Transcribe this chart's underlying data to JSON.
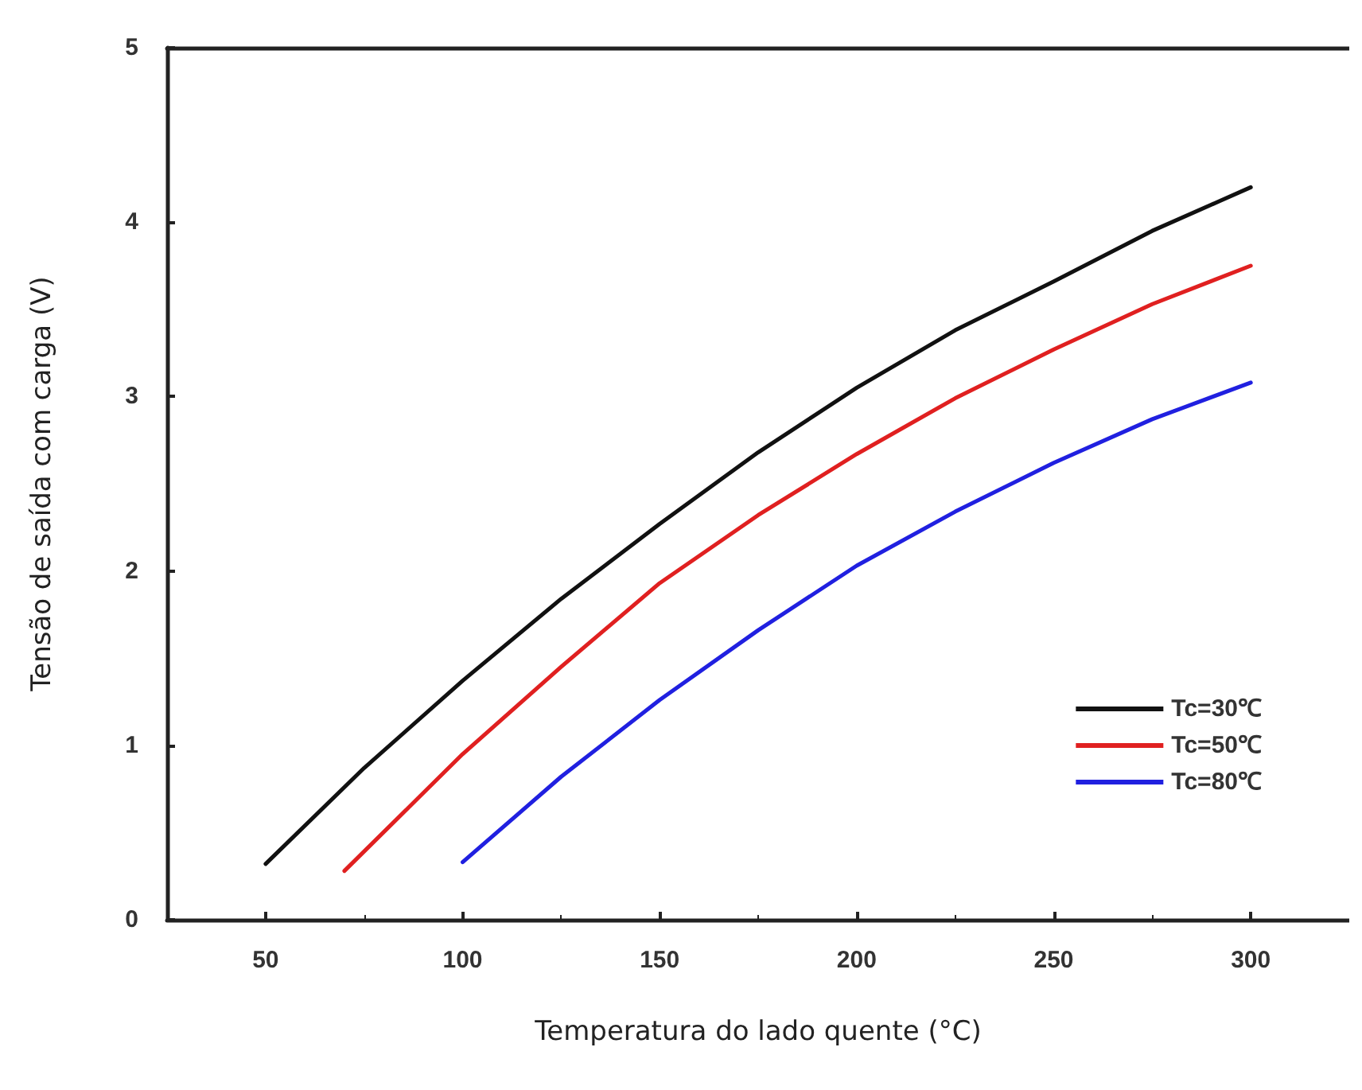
{
  "chart_data": {
    "type": "line",
    "xlabel": "Temperatura do lado quente (°C)",
    "ylabel": "Tensão de saída com carga (V)",
    "xlim": [
      25,
      325
    ],
    "xticks": [
      50,
      100,
      150,
      200,
      250,
      300
    ],
    "ylim": [
      0,
      5
    ],
    "yticks": [
      0,
      1,
      2,
      3,
      4,
      5
    ],
    "grid": false,
    "legend": "right",
    "marker": "none",
    "line_style": "solid",
    "series": [
      {
        "name": "Tc=30℃",
        "color": "#111111",
        "x": [
          50,
          75,
          100,
          125,
          150,
          175,
          200,
          225,
          250,
          275,
          300
        ],
        "values": [
          0.32,
          0.87,
          1.37,
          1.84,
          2.27,
          2.68,
          3.05,
          3.38,
          3.66,
          3.95,
          4.2
        ]
      },
      {
        "name": "Tc=50℃",
        "color": "#e02020",
        "x": [
          70,
          100,
          125,
          150,
          175,
          200,
          225,
          250,
          275,
          300
        ],
        "values": [
          0.28,
          0.95,
          1.45,
          1.93,
          2.32,
          2.67,
          2.99,
          3.27,
          3.53,
          3.75
        ]
      },
      {
        "name": "Tc=80℃",
        "color": "#2020e0",
        "x": [
          100,
          125,
          150,
          175,
          200,
          225,
          250,
          275,
          300
        ],
        "values": [
          0.33,
          0.82,
          1.26,
          1.66,
          2.03,
          2.34,
          2.62,
          2.87,
          3.08
        ]
      }
    ]
  }
}
